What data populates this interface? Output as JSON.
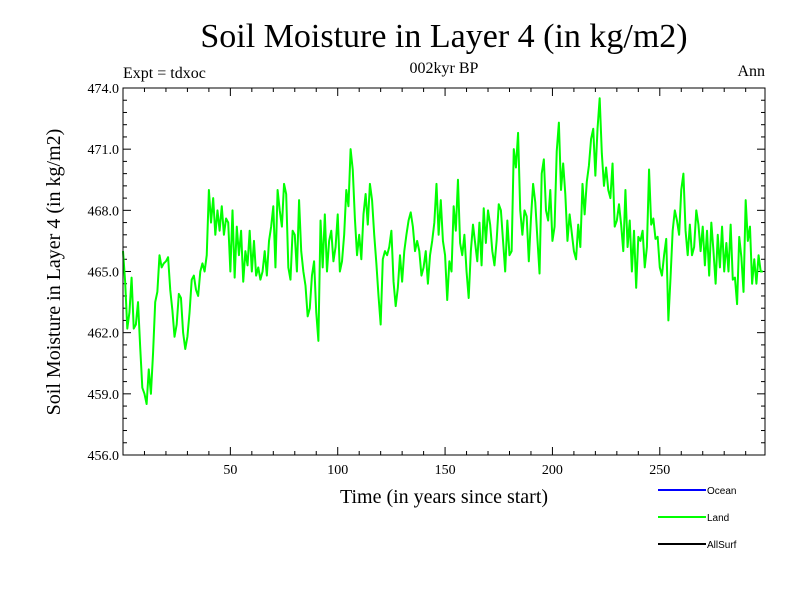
{
  "chart_data": {
    "type": "line",
    "title": "Soil Moisture in Layer 4 (in kg/m2)",
    "subtitle": "002kyr BP",
    "left_label": "Expt = tdxoc",
    "right_label": "Ann",
    "xlabel": "Time (in years since start)",
    "ylabel": "Soil Moisture in Layer 4 (in kg/m2)",
    "xlim": [
      0,
      299
    ],
    "ylim": [
      456.0,
      474.0
    ],
    "x_ticks": [
      50,
      100,
      150,
      200,
      250
    ],
    "x_tick_labels": [
      "50",
      "100",
      "150",
      "200",
      "250"
    ],
    "y_ticks": [
      456,
      459,
      462,
      465,
      468,
      471,
      474
    ],
    "y_tick_labels": [
      "456.0",
      "459.0",
      "462.0",
      "465.0",
      "468.0",
      "471.0",
      "474.0"
    ],
    "legend": {
      "placement": "bottom-right",
      "entries": [
        {
          "name": "Ocean",
          "color": "#0000ff"
        },
        {
          "name": "Land",
          "color": "#00ff00"
        },
        {
          "name": "AllSurf",
          "color": "#000000"
        }
      ]
    },
    "series": [
      {
        "name": "Land",
        "color": "#00ff00",
        "x_start": 0,
        "x_step": 1,
        "values": [
          466.0,
          464.5,
          462.2,
          463.0,
          464.7,
          462.2,
          462.4,
          463.5,
          461.3,
          459.3,
          459.0,
          458.5,
          460.2,
          459.0,
          461.0,
          463.5,
          464.0,
          465.8,
          465.2,
          465.4,
          465.5,
          465.7,
          464.1,
          463.1,
          461.8,
          462.4,
          463.9,
          463.7,
          462.0,
          461.2,
          461.8,
          463.0,
          464.6,
          464.8,
          464.1,
          463.8,
          465.0,
          465.4,
          465.0,
          465.8,
          469.0,
          467.4,
          468.6,
          466.8,
          468.0,
          467.0,
          468.2,
          466.8,
          467.6,
          467.4,
          465.0,
          468.0,
          464.7,
          467.2,
          465.8,
          467.0,
          464.5,
          466.0,
          465.3,
          467.0,
          465.0,
          466.5,
          464.8,
          465.2,
          464.6,
          465.0,
          466.0,
          464.8,
          466.5,
          467.2,
          468.2,
          465.2,
          469.0,
          468.0,
          467.2,
          469.3,
          468.8,
          465.2,
          464.6,
          467.0,
          466.8,
          465.0,
          468.5,
          466.0,
          465.0,
          464.3,
          462.8,
          463.2,
          464.8,
          465.5,
          463.0,
          461.6,
          467.5,
          465.2,
          467.8,
          465.0,
          466.5,
          467.0,
          465.5,
          466.2,
          467.8,
          465.0,
          465.5,
          466.8,
          469.0,
          468.2,
          471.0,
          470.0,
          467.6,
          465.8,
          466.8,
          465.6,
          467.8,
          468.8,
          467.3,
          469.3,
          468.5,
          466.8,
          465.4,
          463.8,
          462.4,
          465.6,
          466.0,
          465.8,
          466.2,
          467.0,
          464.5,
          463.3,
          464.2,
          465.8,
          464.5,
          466.0,
          466.8,
          467.5,
          467.9,
          467.2,
          466.0,
          466.5,
          466.0,
          464.8,
          465.2,
          466.0,
          464.4,
          465.8,
          466.5,
          467.4,
          469.3,
          466.8,
          468.5,
          466.5,
          465.8,
          463.6,
          465.5,
          465.0,
          468.2,
          467.0,
          469.5,
          466.4,
          465.8,
          466.8,
          465.0,
          463.7,
          466.0,
          467.3,
          466.4,
          465.5,
          467.4,
          465.3,
          468.1,
          466.4,
          468.0,
          467.3,
          466.0,
          465.3,
          466.5,
          468.3,
          468.0,
          466.5,
          465.0,
          467.5,
          465.8,
          466.0,
          471.0,
          470.1,
          471.8,
          468.0,
          466.8,
          468.0,
          467.7,
          465.5,
          467.6,
          469.3,
          468.4,
          466.6,
          464.9,
          469.8,
          470.5,
          468.0,
          467.5,
          469.0,
          466.5,
          467.2,
          470.9,
          472.3,
          469.0,
          470.3,
          468.8,
          466.5,
          467.8,
          466.9,
          466.0,
          465.6,
          467.3,
          466.2,
          469.3,
          467.8,
          469.4,
          470.2,
          471.5,
          472.0,
          469.7,
          472.0,
          473.5,
          470.8,
          469.2,
          470.1,
          469.0,
          468.6,
          470.3,
          467.2,
          467.5,
          468.3,
          467.3,
          466.0,
          469.0,
          466.2,
          467.5,
          465.0,
          467.0,
          464.2,
          466.7,
          466.5,
          467.0,
          465.2,
          466.2,
          470.0,
          467.3,
          467.6,
          466.6,
          466.7,
          465.2,
          464.8,
          465.8,
          466.6,
          462.6,
          464.7,
          467.0,
          468.0,
          467.5,
          466.8,
          469.0,
          469.8,
          467.0,
          465.8,
          467.3,
          465.8,
          466.2,
          468.0,
          467.3,
          466.0,
          467.2,
          465.3,
          467.0,
          464.8,
          467.4,
          466.0,
          464.4,
          466.8,
          465.2,
          467.2,
          465.0,
          466.4,
          465.0,
          467.3,
          464.6,
          464.7,
          463.4,
          466.7,
          465.7,
          464.0,
          468.5,
          466.5,
          467.2,
          464.4,
          465.6,
          464.4,
          465.8,
          465.0,
          465.0
        ]
      }
    ]
  }
}
